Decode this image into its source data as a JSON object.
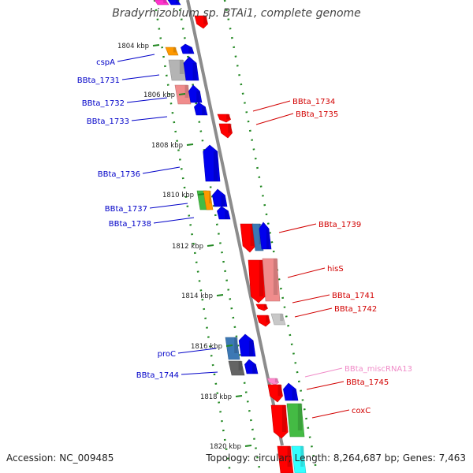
{
  "title": "Bradyrhizobium sp. BTAi1, complete genome",
  "footer": {
    "accession": "Accession: NC_009485",
    "summary": "Topology: circular; Length: 8,264,687 bp; Genes: 7,463"
  },
  "colors": {
    "forward_label": "#0000c8",
    "reverse_label": "#d20000",
    "misc_rna_label": "#f08cc8",
    "backbone": "#8c8c8c",
    "tick": "#228822"
  },
  "scale": {
    "ticks": [
      "1804 kbp",
      "1806 kbp",
      "1808 kbp",
      "1810 kbp",
      "1812 kbp",
      "1814 kbp",
      "1816 kbp",
      "1818 kbp",
      "1820 kbp"
    ]
  },
  "labels": {
    "left": [
      "cspA",
      "BBta_1731",
      "BBta_1732",
      "BBta_1733",
      "BBta_1736",
      "BBta_1737",
      "BBta_1738",
      "proC",
      "BBta_1744"
    ],
    "right": [
      "BBta_1734",
      "BBta_1735",
      "BBta_1739",
      "hisS",
      "BBta_1741",
      "BBta_1742",
      "BBta_miscRNA13",
      "BBta_1745",
      "coxC"
    ]
  }
}
